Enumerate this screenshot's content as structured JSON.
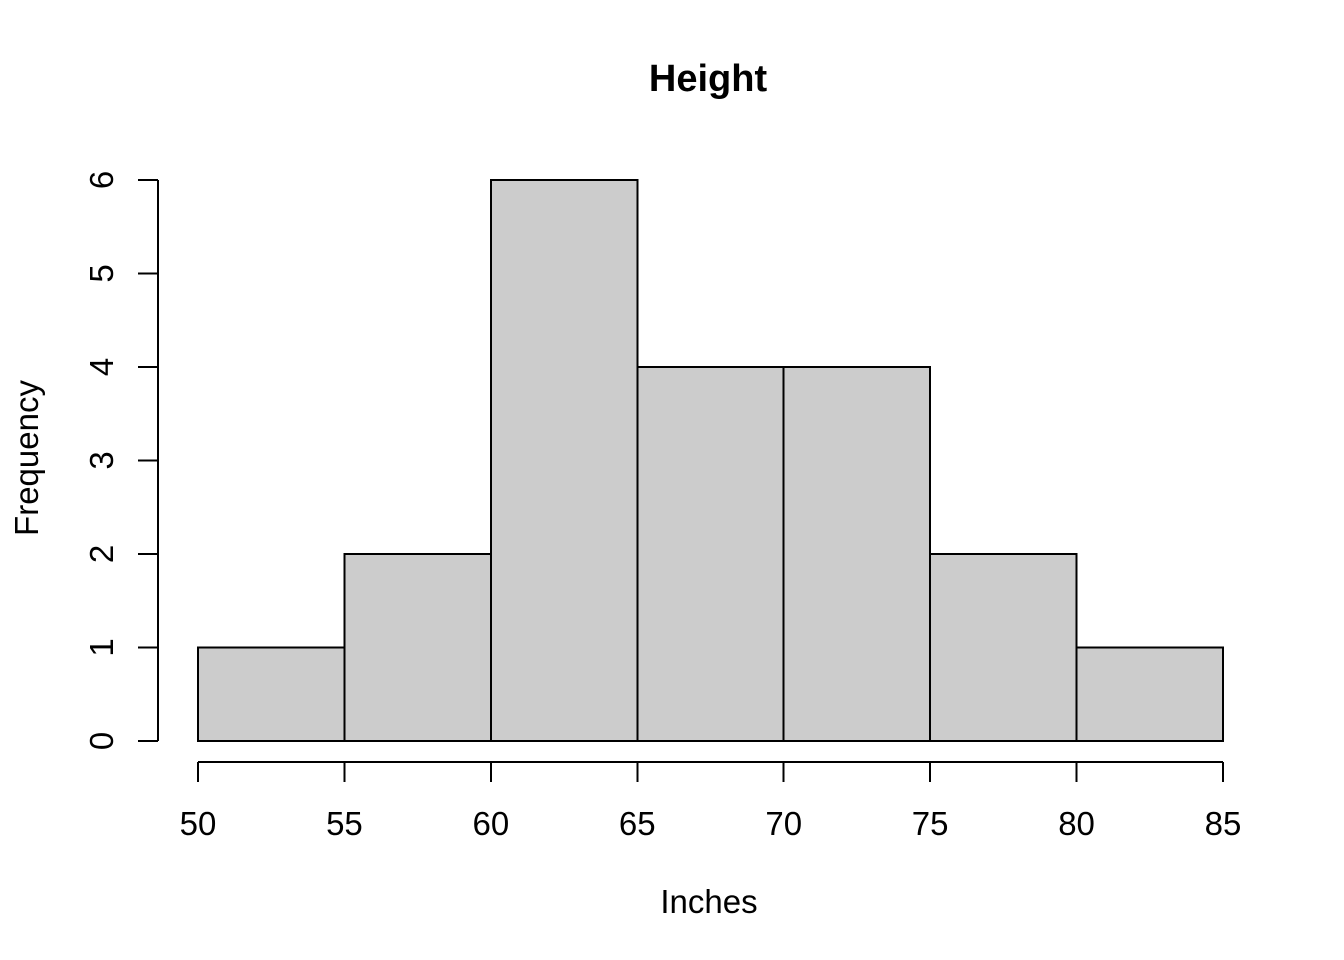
{
  "chart_data": {
    "type": "bar",
    "subtype": "histogram",
    "title": "Height",
    "xlabel": "Inches",
    "ylabel": "Frequency",
    "bin_edges": [
      50,
      55,
      60,
      65,
      70,
      75,
      80,
      85
    ],
    "counts": [
      1,
      2,
      6,
      4,
      4,
      2,
      1
    ],
    "x_ticks": [
      "50",
      "55",
      "60",
      "65",
      "70",
      "75",
      "80",
      "85"
    ],
    "y_ticks": [
      "0",
      "1",
      "2",
      "3",
      "4",
      "5",
      "6"
    ],
    "xlim": [
      50,
      85
    ],
    "ylim": [
      0,
      6
    ],
    "grid": false,
    "legend": null,
    "colors": {
      "bar_fill": "#CCCCCC",
      "bar_border": "#000000",
      "axis": "#000000",
      "text": "#000000",
      "background": "#FFFFFF"
    }
  }
}
